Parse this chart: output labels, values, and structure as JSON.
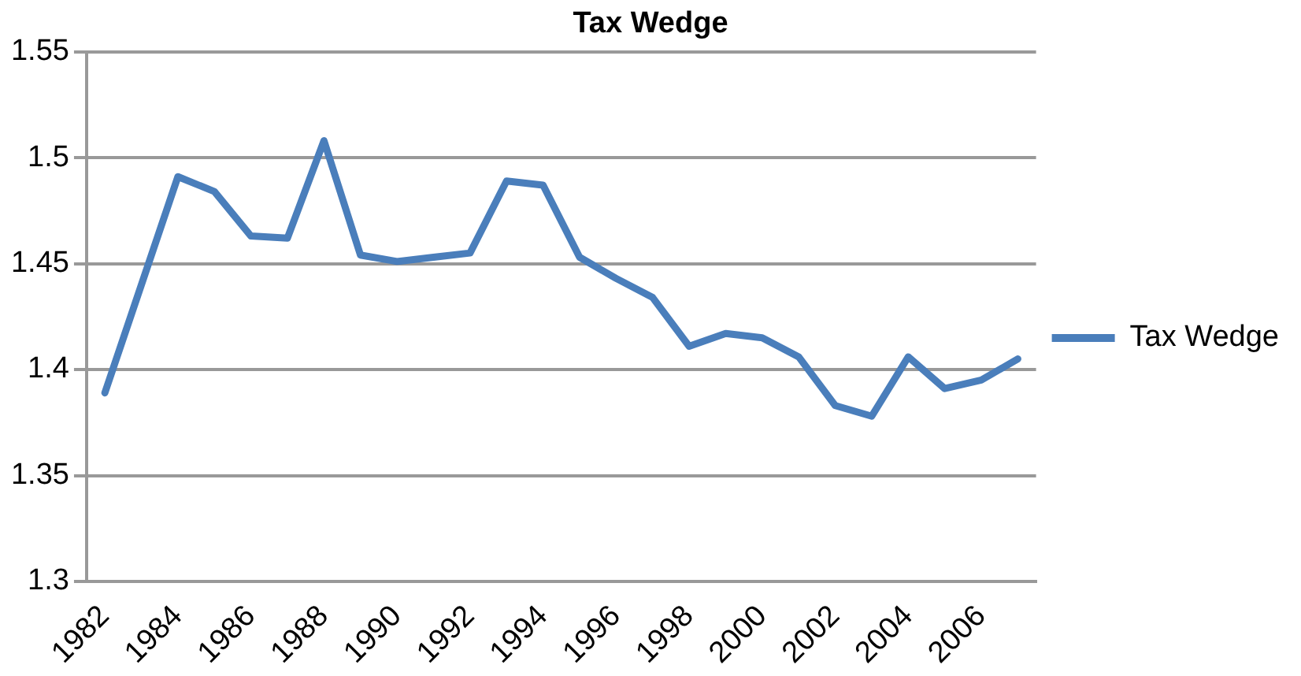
{
  "chart_data": {
    "type": "line",
    "title": "Tax Wedge",
    "categories": [
      "1982",
      null,
      "1984",
      null,
      "1986",
      null,
      "1988",
      null,
      "1990",
      null,
      "1992",
      null,
      "1994",
      null,
      "1996",
      null,
      "1998",
      null,
      "2000",
      null,
      "2002",
      null,
      "2004",
      null,
      "2006",
      null
    ],
    "series": [
      {
        "name": "Tax Wedge",
        "color": "#4a7ebb",
        "values": [
          1.389,
          1.44,
          1.491,
          1.484,
          1.463,
          1.462,
          1.508,
          1.454,
          1.451,
          1.453,
          1.455,
          1.489,
          1.487,
          1.453,
          1.443,
          1.434,
          1.411,
          1.417,
          1.415,
          1.406,
          1.383,
          1.378,
          1.406,
          1.391,
          1.395,
          1.405
        ]
      }
    ],
    "ylim": [
      1.3,
      1.55
    ],
    "yticks": [
      1.3,
      1.35,
      1.4,
      1.45,
      1.5,
      1.55
    ],
    "grid": "y",
    "legend": "right",
    "marker": "none",
    "line_style": "solid"
  }
}
